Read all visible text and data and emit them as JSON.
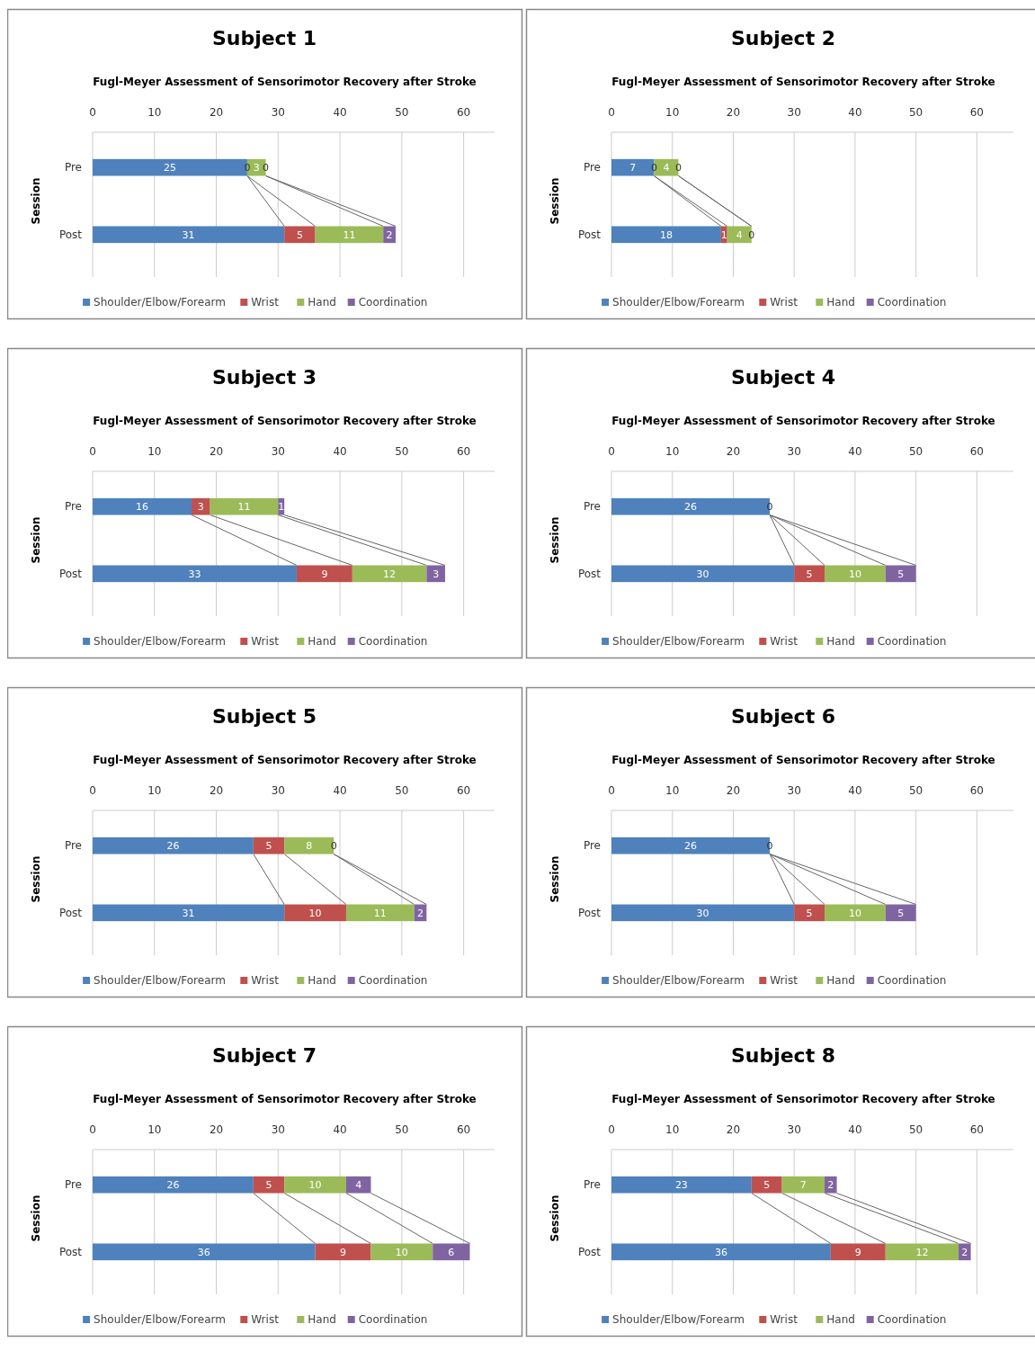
{
  "chart_data": [
    {
      "type": "bar",
      "orientation": "horizontal",
      "stacked": true,
      "title": "Subject 1",
      "subtitle": "Fugl-Meyer Assessment of Sensorimotor Recovery after Stroke",
      "ylabel": "Session",
      "categories": [
        "Pre",
        "Post"
      ],
      "xlim": [
        0,
        65
      ],
      "xticks": [
        0,
        10,
        20,
        30,
        40,
        50,
        60
      ],
      "grid": "x",
      "legend": "bottom",
      "data_labels": true,
      "series": [
        {
          "name": "Shoulder/Elbow/Forearm",
          "color": "#4f81bd",
          "values": [
            25,
            31
          ]
        },
        {
          "name": "Wrist",
          "color": "#c0504d",
          "values": [
            0,
            5
          ]
        },
        {
          "name": "Hand",
          "color": "#9bbb59",
          "values": [
            3,
            11
          ]
        },
        {
          "name": "Coordination",
          "color": "#8064a2",
          "values": [
            0,
            2
          ]
        }
      ]
    },
    {
      "type": "bar",
      "orientation": "horizontal",
      "stacked": true,
      "title": "Subject 2",
      "subtitle": "Fugl-Meyer Assessment of Sensorimotor Recovery after Stroke",
      "ylabel": "Session",
      "categories": [
        "Pre",
        "Post"
      ],
      "xlim": [
        0,
        66
      ],
      "xticks": [
        0,
        10,
        20,
        30,
        40,
        50,
        60
      ],
      "grid": "x",
      "legend": "bottom",
      "data_labels": true,
      "series": [
        {
          "name": "Shoulder/Elbow/Forearm",
          "color": "#4f81bd",
          "values": [
            7,
            18
          ]
        },
        {
          "name": "Wrist",
          "color": "#c0504d",
          "values": [
            0,
            1
          ]
        },
        {
          "name": "Hand",
          "color": "#9bbb59",
          "values": [
            4,
            4
          ]
        },
        {
          "name": "Coordination",
          "color": "#8064a2",
          "values": [
            0,
            0
          ]
        }
      ]
    },
    {
      "type": "bar",
      "orientation": "horizontal",
      "stacked": true,
      "title": "Subject 3",
      "subtitle": "Fugl-Meyer Assessment of Sensorimotor Recovery after Stroke",
      "ylabel": "Session",
      "categories": [
        "Pre",
        "Post"
      ],
      "xlim": [
        0,
        65
      ],
      "xticks": [
        0,
        10,
        20,
        30,
        40,
        50,
        60
      ],
      "grid": "x",
      "legend": "bottom",
      "data_labels": true,
      "series": [
        {
          "name": "Shoulder/Elbow/Forearm",
          "color": "#4f81bd",
          "values": [
            16,
            33
          ]
        },
        {
          "name": "Wrist",
          "color": "#c0504d",
          "values": [
            3,
            9
          ]
        },
        {
          "name": "Hand",
          "color": "#9bbb59",
          "values": [
            11,
            12
          ]
        },
        {
          "name": "Coordination",
          "color": "#8064a2",
          "values": [
            1,
            3
          ]
        }
      ]
    },
    {
      "type": "bar",
      "orientation": "horizontal",
      "stacked": true,
      "title": "Subject 4",
      "subtitle": "Fugl-Meyer Assessment of Sensorimotor Recovery after Stroke",
      "ylabel": "Session",
      "categories": [
        "Pre",
        "Post"
      ],
      "xlim": [
        0,
        66
      ],
      "xticks": [
        0,
        10,
        20,
        30,
        40,
        50,
        60
      ],
      "grid": "x",
      "legend": "bottom",
      "series": [
        {
          "name": "Shoulder/Elbow/Forearm",
          "color": "#4f81bd",
          "values": [
            26,
            30
          ],
          "value_labels": [
            "26",
            "30"
          ]
        },
        {
          "name": "Wrist",
          "color": "#c0504d",
          "values": [
            0,
            5
          ],
          "value_labels": [
            "0",
            "5"
          ]
        },
        {
          "name": "Hand",
          "color": "#9bbb59",
          "values": [
            0,
            10
          ],
          "value_labels": [
            null,
            "10"
          ]
        },
        {
          "name": "Coordination",
          "color": "#8064a2",
          "values": [
            0,
            5
          ],
          "value_labels": [
            null,
            "5"
          ]
        }
      ]
    },
    {
      "type": "bar",
      "orientation": "horizontal",
      "stacked": true,
      "title": "Subject 5",
      "subtitle": "Fugl-Meyer Assessment of Sensorimotor Recovery after Stroke",
      "ylabel": "Session",
      "categories": [
        "Pre",
        "Post"
      ],
      "xlim": [
        0,
        65
      ],
      "xticks": [
        0,
        10,
        20,
        30,
        40,
        50,
        60
      ],
      "grid": "x",
      "legend": "bottom",
      "data_labels": true,
      "series": [
        {
          "name": "Shoulder/Elbow/Forearm",
          "color": "#4f81bd",
          "values": [
            26,
            31
          ]
        },
        {
          "name": "Wrist",
          "color": "#c0504d",
          "values": [
            5,
            10
          ]
        },
        {
          "name": "Hand",
          "color": "#9bbb59",
          "values": [
            8,
            11
          ]
        },
        {
          "name": "Coordination",
          "color": "#8064a2",
          "values": [
            0,
            2
          ]
        }
      ]
    },
    {
      "type": "bar",
      "orientation": "horizontal",
      "stacked": true,
      "title": "Subject 6",
      "subtitle": "Fugl-Meyer Assessment of Sensorimotor Recovery after Stroke",
      "ylabel": "Session",
      "categories": [
        "Pre",
        "Post"
      ],
      "xlim": [
        0,
        66
      ],
      "xticks": [
        0,
        10,
        20,
        30,
        40,
        50,
        60
      ],
      "grid": "x",
      "legend": "bottom",
      "series": [
        {
          "name": "Shoulder/Elbow/Forearm",
          "color": "#4f81bd",
          "values": [
            26,
            30
          ],
          "value_labels": [
            "26",
            "30"
          ]
        },
        {
          "name": "Wrist",
          "color": "#c0504d",
          "values": [
            0,
            5
          ],
          "value_labels": [
            "0",
            "5"
          ]
        },
        {
          "name": "Hand",
          "color": "#9bbb59",
          "values": [
            0,
            10
          ],
          "value_labels": [
            null,
            "10"
          ]
        },
        {
          "name": "Coordination",
          "color": "#8064a2",
          "values": [
            0,
            5
          ],
          "value_labels": [
            null,
            "5"
          ]
        }
      ]
    },
    {
      "type": "bar",
      "orientation": "horizontal",
      "stacked": true,
      "title": "Subject 7",
      "subtitle": "Fugl-Meyer Assessment of Sensorimotor Recovery after Stroke",
      "ylabel": "Session",
      "categories": [
        "Pre",
        "Post"
      ],
      "xlim": [
        0,
        65
      ],
      "xticks": [
        0,
        10,
        20,
        30,
        40,
        50,
        60
      ],
      "grid": "x",
      "legend": "bottom",
      "data_labels": true,
      "series": [
        {
          "name": "Shoulder/Elbow/Forearm",
          "color": "#4f81bd",
          "values": [
            26,
            36
          ]
        },
        {
          "name": "Wrist",
          "color": "#c0504d",
          "values": [
            5,
            9
          ]
        },
        {
          "name": "Hand",
          "color": "#9bbb59",
          "values": [
            10,
            10
          ]
        },
        {
          "name": "Coordination",
          "color": "#8064a2",
          "values": [
            4,
            6
          ]
        }
      ]
    },
    {
      "type": "bar",
      "orientation": "horizontal",
      "stacked": true,
      "title": "Subject 8",
      "subtitle": "Fugl-Meyer Assessment of Sensorimotor Recovery after Stroke",
      "ylabel": "Session",
      "categories": [
        "Pre",
        "Post"
      ],
      "xlim": [
        0,
        66
      ],
      "xticks": [
        0,
        10,
        20,
        30,
        40,
        50,
        60
      ],
      "grid": "x",
      "legend": "bottom",
      "data_labels": true,
      "series": [
        {
          "name": "Shoulder/Elbow/Forearm",
          "color": "#4f81bd",
          "values": [
            23,
            36
          ]
        },
        {
          "name": "Wrist",
          "color": "#c0504d",
          "values": [
            5,
            9
          ]
        },
        {
          "name": "Hand",
          "color": "#9bbb59",
          "values": [
            7,
            12
          ]
        },
        {
          "name": "Coordination",
          "color": "#8064a2",
          "values": [
            2,
            2
          ]
        }
      ]
    }
  ]
}
